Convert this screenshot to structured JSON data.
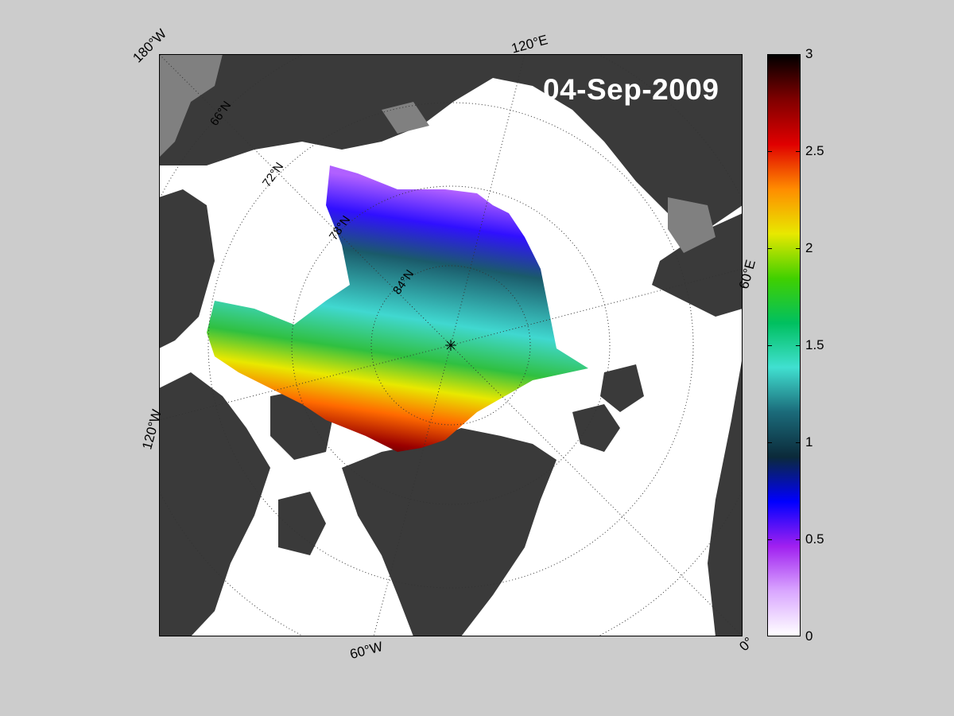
{
  "map": {
    "date": "04-Sep-2009",
    "longitude_labels": [
      "180°W",
      "120°E",
      "60°E",
      "0°",
      "60°W",
      "120°W"
    ],
    "latitude_labels": [
      "66°N",
      "72°N",
      "78°N",
      "84°N"
    ]
  },
  "colorbar": {
    "ticks": [
      "3",
      "2.5",
      "2",
      "1.5",
      "1",
      "0.5",
      "0"
    ],
    "min": 0,
    "max": 3,
    "colors": [
      "#ffffff",
      "#d9a6ff",
      "#a020f0",
      "#0000ff",
      "#0b2a3a",
      "#1b6b7a",
      "#40e0d0",
      "#00c060",
      "#40d000",
      "#e8e800",
      "#ff8c00",
      "#e00000",
      "#800000",
      "#000000"
    ]
  },
  "colors": {
    "background": "#cccccc",
    "land": "#3a3a3a",
    "ocean": "#ffffff"
  }
}
